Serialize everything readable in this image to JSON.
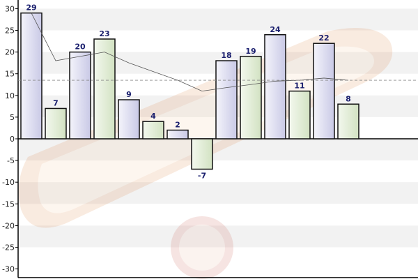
{
  "chart_data": {
    "type": "bar",
    "title": "",
    "xlabel": "",
    "ylabel": "",
    "ylim": [
      -32,
      32
    ],
    "yticks": [
      -30,
      -25,
      -20,
      -15,
      -10,
      -5,
      0,
      5,
      10,
      15,
      20,
      25,
      30
    ],
    "grid": "alternating horizontal bands",
    "values": [
      29,
      7,
      20,
      23,
      9,
      4,
      2,
      -7,
      18,
      19,
      24,
      11,
      22,
      8
    ],
    "bar_fills": [
      "#dcdcf0",
      "#e2ecd8"
    ],
    "trend_line": [
      29,
      18,
      19,
      20,
      17.5,
      15.5,
      13.5,
      11,
      11.8,
      12.5,
      13.3,
      13.5,
      14,
      13.5
    ],
    "average_line": 13.5,
    "colors": {
      "bar_stroke": "#111111",
      "label": "#1a1f6e",
      "trend": "#555555",
      "average": "#888888",
      "band": "#f2f2f2"
    }
  }
}
